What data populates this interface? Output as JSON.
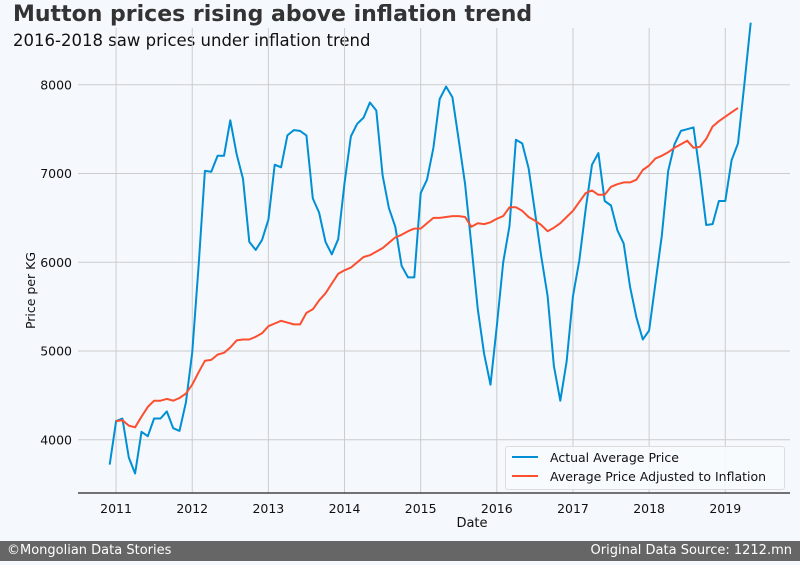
{
  "chart_data": {
    "type": "line",
    "title": "Mutton prices rising above inflation trend",
    "subtitle": "2016-2018 saw prices under inflation trend",
    "xlabel": "Date",
    "ylabel": "Price per KG",
    "xlim": [
      2010.5,
      2019.85
    ],
    "ylim": [
      3400,
      8640
    ],
    "x_ticks": [
      "2011",
      "2012",
      "2013",
      "2014",
      "2015",
      "2016",
      "2017",
      "2018",
      "2019"
    ],
    "y_ticks": [
      "4000",
      "5000",
      "6000",
      "7000",
      "8000"
    ],
    "grid": true,
    "legend_position": "bottom-right",
    "series": [
      {
        "name": "Actual Average Price",
        "color": "#008fd5",
        "start": "2010-12",
        "values": [
          3720,
          4210,
          4240,
          3800,
          3620,
          4090,
          4040,
          4240,
          4240,
          4320,
          4130,
          4100,
          4420,
          4980,
          5960,
          7030,
          7020,
          7200,
          7200,
          7600,
          7220,
          6940,
          6230,
          6140,
          6250,
          6480,
          7100,
          7070,
          7430,
          7490,
          7480,
          7430,
          6720,
          6560,
          6230,
          6090,
          6260,
          6890,
          7420,
          7560,
          7630,
          7800,
          7710,
          6980,
          6610,
          6400,
          5960,
          5830,
          5830,
          6780,
          6930,
          7290,
          7840,
          7980,
          7860,
          7380,
          6880,
          6190,
          5470,
          4970,
          4620,
          5280,
          6000,
          6410,
          7380,
          7340,
          7060,
          6570,
          6070,
          5620,
          4830,
          4440,
          4880,
          5620,
          6020,
          6600,
          7100,
          7230,
          6690,
          6640,
          6360,
          6210,
          5720,
          5380,
          5130,
          5230,
          5770,
          6300,
          7030,
          7330,
          7480,
          7500,
          7520,
          7000,
          6420,
          6430,
          6690,
          6690,
          7150,
          7340,
          8000,
          8700
        ]
      },
      {
        "name": "Average Price Adjusted to Inflation",
        "color": "#fc4f30",
        "start": "2011-01",
        "values": [
          4210,
          4220,
          4160,
          4140,
          4260,
          4370,
          4440,
          4440,
          4460,
          4440,
          4470,
          4520,
          4620,
          4760,
          4890,
          4900,
          4960,
          4980,
          5040,
          5120,
          5130,
          5130,
          5160,
          5200,
          5280,
          5310,
          5340,
          5320,
          5300,
          5300,
          5430,
          5470,
          5570,
          5650,
          5760,
          5870,
          5910,
          5940,
          6000,
          6060,
          6080,
          6120,
          6160,
          6220,
          6280,
          6310,
          6350,
          6380,
          6380,
          6440,
          6500,
          6500,
          6510,
          6520,
          6520,
          6510,
          6400,
          6440,
          6430,
          6450,
          6490,
          6520,
          6620,
          6620,
          6580,
          6510,
          6470,
          6420,
          6350,
          6390,
          6440,
          6510,
          6580,
          6680,
          6780,
          6810,
          6760,
          6760,
          6850,
          6880,
          6900,
          6900,
          6930,
          7040,
          7090,
          7170,
          7200,
          7240,
          7290,
          7330,
          7370,
          7290,
          7300,
          7390,
          7530,
          7590,
          7640,
          7690,
          7740
        ]
      }
    ]
  },
  "footer": {
    "credit": "©Mongolian Data Stories",
    "source": "Original Data Source: 1212.mn"
  }
}
